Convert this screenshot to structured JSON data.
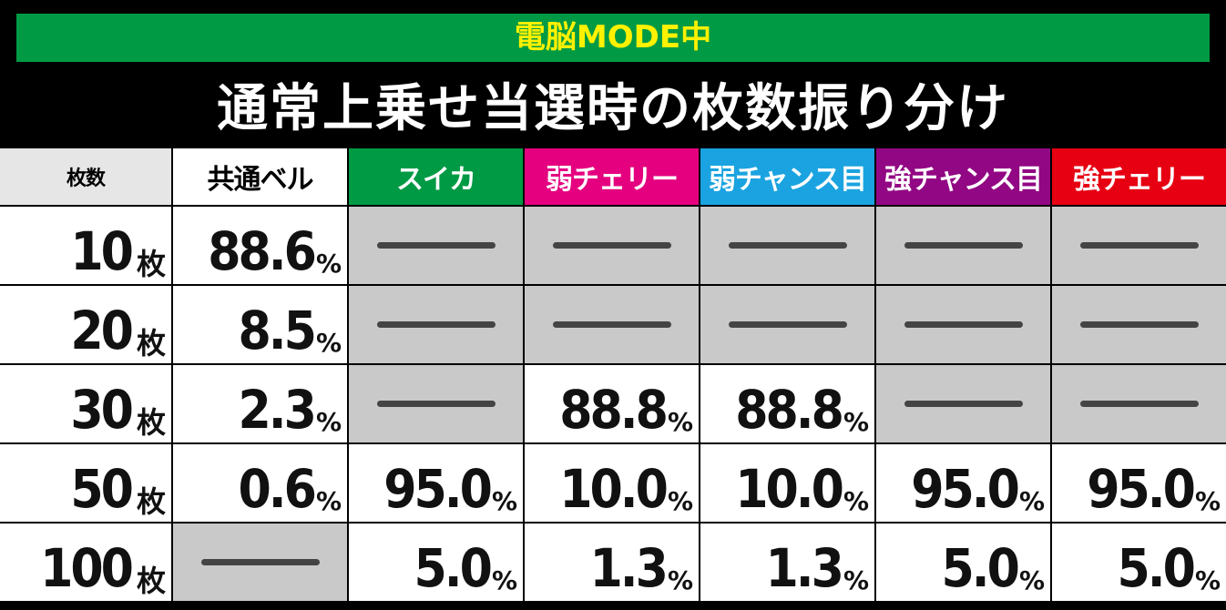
{
  "header": {
    "mode": "電脳MODE中",
    "title": "通常上乗せ当選時の枚数振り分け"
  },
  "table": {
    "columns": [
      {
        "text": "枚数",
        "bg": "#e6e6e6",
        "fg": "#000000"
      },
      {
        "text": "共通ベル",
        "bg": "#ffffff",
        "fg": "#000000"
      },
      {
        "text": "スイカ",
        "bg": "#009a44",
        "fg": "#ffffff"
      },
      {
        "text": "弱チェリー",
        "bg": "#e4007f",
        "fg": "#ffffff"
      },
      {
        "text": "弱チャンス目",
        "bg": "#1aa3e0",
        "fg": "#ffffff"
      },
      {
        "text": "強チャンス目",
        "bg": "#920783",
        "fg": "#ffffff"
      },
      {
        "text": "強チェリー",
        "bg": "#e60012",
        "fg": "#ffffff"
      }
    ],
    "rows": [
      [
        {
          "text": "10",
          "unit": "枚"
        },
        {
          "text": "88.6",
          "unit": "%"
        },
        null,
        null,
        null,
        null,
        null
      ],
      [
        {
          "text": "20",
          "unit": "枚"
        },
        {
          "text": "8.5",
          "unit": "%"
        },
        null,
        null,
        null,
        null,
        null
      ],
      [
        {
          "text": "30",
          "unit": "枚"
        },
        {
          "text": "2.3",
          "unit": "%"
        },
        null,
        {
          "text": "88.8",
          "unit": "%"
        },
        {
          "text": "88.8",
          "unit": "%"
        },
        null,
        null
      ],
      [
        {
          "text": "50",
          "unit": "枚"
        },
        {
          "text": "0.6",
          "unit": "%"
        },
        {
          "text": "95.0",
          "unit": "%"
        },
        {
          "text": "10.0",
          "unit": "%"
        },
        {
          "text": "10.0",
          "unit": "%"
        },
        {
          "text": "95.0",
          "unit": "%"
        },
        {
          "text": "95.0",
          "unit": "%"
        }
      ],
      [
        {
          "text": "100",
          "unit": "枚"
        },
        null,
        {
          "text": "5.0",
          "unit": "%"
        },
        {
          "text": "1.3",
          "unit": "%"
        },
        {
          "text": "1.3",
          "unit": "%"
        },
        {
          "text": "5.0",
          "unit": "%"
        },
        {
          "text": "5.0",
          "unit": "%"
        }
      ]
    ]
  }
}
